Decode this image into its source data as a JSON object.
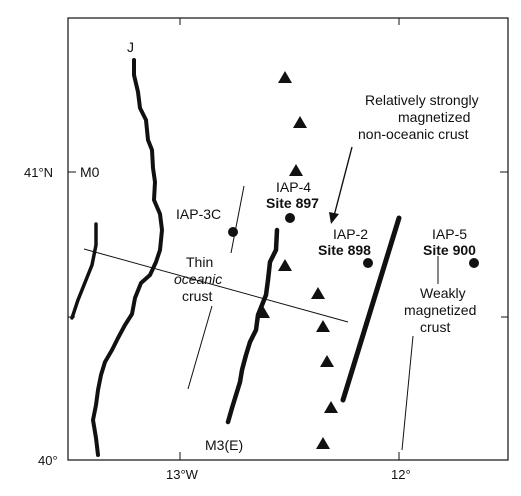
{
  "axes": {
    "lat_labels": [
      "41°N",
      "40°"
    ],
    "lon_labels": [
      "13°W",
      "12°"
    ]
  },
  "anomalies": {
    "j": "J",
    "m0": "M0",
    "m3": "M3(E)"
  },
  "sites": [
    {
      "id": "IAP-3C",
      "site": ""
    },
    {
      "id": "IAP-4",
      "site": "Site 897"
    },
    {
      "id": "IAP-2",
      "site": "Site 898"
    },
    {
      "id": "IAP-5",
      "site": "Site 900"
    }
  ],
  "annotations": {
    "strong_crust": [
      "Relatively strongly",
      "magnetized",
      "non-oceanic crust"
    ],
    "thin_crust": [
      "Thin",
      "oceanic",
      "crust"
    ],
    "weak_crust": [
      "Weakly",
      "magnetized",
      "crust"
    ]
  },
  "colors": {
    "ink": "#111111",
    "background": "#ffffff"
  },
  "symbols": {
    "seamount": "triangle",
    "drill_site": "filled-circle"
  }
}
